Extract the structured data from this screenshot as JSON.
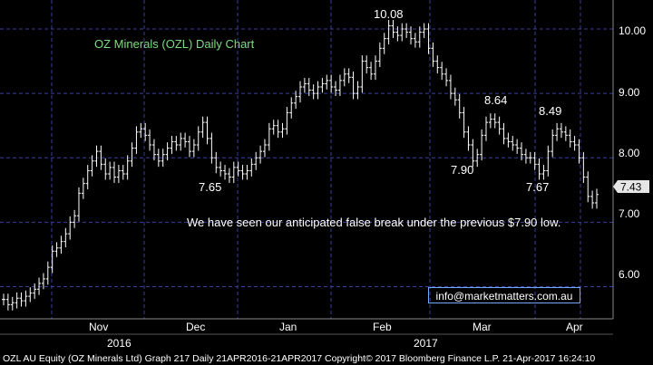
{
  "colors": {
    "background": "#000000",
    "grid": "#3a3f9a",
    "bars": "#ffffff",
    "title": "#7ddc7d",
    "last_price_box": "#e6e6e6",
    "email_border": "#6ea8ff"
  },
  "email": "info@marketmatters.com.au",
  "footer": "OZL AU Equity (OZ Minerals Ltd) Graph 217  Daily 21APR2016-21APR2017  Copyright© 2017 Bloomberg Finance L.P.  21-Apr-2017 16:24:10",
  "chart_data": {
    "type": "ohlc",
    "title": "OZ Minerals (OZL) Daily Chart",
    "y_axis": {
      "side": "right",
      "range": [
        5.5,
        10.45
      ],
      "ticks": [
        "6.00",
        "7.00",
        "8.00",
        "9.00",
        "10.00"
      ]
    },
    "x_axis": {
      "months": [
        "Nov",
        "Dec",
        "Jan",
        "Feb",
        "Mar",
        "Apr"
      ],
      "years": [
        "2016",
        "2017"
      ]
    },
    "grid": true,
    "last_price": "7.43",
    "annotations": {
      "peak": "10.08",
      "low_dec": "7.65",
      "low_mar": "7.90",
      "high_mar": "8.64",
      "high_apr": "8.49",
      "low_apr": "7.67",
      "comment": "We have seen our anticipated false break under the previous $7.90 low."
    },
    "series": [
      {
        "name": "OZL",
        "values": [
          5.8,
          5.72,
          5.75,
          5.82,
          5.78,
          5.85,
          5.9,
          5.96,
          6.05,
          6.12,
          6.3,
          6.55,
          6.6,
          6.7,
          6.82,
          7.0,
          7.1,
          7.45,
          7.6,
          7.8,
          7.95,
          8.1,
          7.9,
          7.75,
          7.85,
          7.7,
          7.8,
          7.75,
          7.95,
          8.15,
          8.4,
          8.45,
          8.35,
          8.2,
          8.05,
          7.95,
          8.05,
          8.15,
          8.25,
          8.2,
          8.3,
          8.25,
          8.1,
          8.2,
          8.4,
          8.55,
          8.3,
          8.0,
          7.85,
          7.8,
          7.75,
          7.7,
          7.85,
          7.8,
          7.75,
          7.8,
          7.9,
          8.0,
          8.1,
          8.2,
          8.45,
          8.5,
          8.4,
          8.45,
          8.7,
          8.85,
          8.95,
          9.1,
          9.15,
          9.05,
          9.0,
          9.1,
          9.15,
          9.2,
          9.1,
          9.05,
          9.2,
          9.3,
          9.25,
          9.0,
          9.1,
          9.5,
          9.4,
          9.3,
          9.5,
          9.7,
          9.85,
          10.05,
          9.95,
          9.9,
          10.0,
          9.95,
          9.85,
          9.8,
          9.95,
          10.0,
          9.7,
          9.5,
          9.4,
          9.3,
          9.2,
          9.0,
          8.9,
          8.7,
          8.4,
          8.2,
          7.95,
          8.05,
          8.35,
          8.55,
          8.6,
          8.55,
          8.45,
          8.3,
          8.25,
          8.2,
          8.15,
          8.05,
          8.0,
          8.0,
          7.9,
          7.75,
          7.8,
          8.1,
          8.35,
          8.45,
          8.4,
          8.35,
          8.25,
          8.2,
          8.0,
          7.7,
          7.4,
          7.3,
          7.43
        ]
      }
    ]
  }
}
